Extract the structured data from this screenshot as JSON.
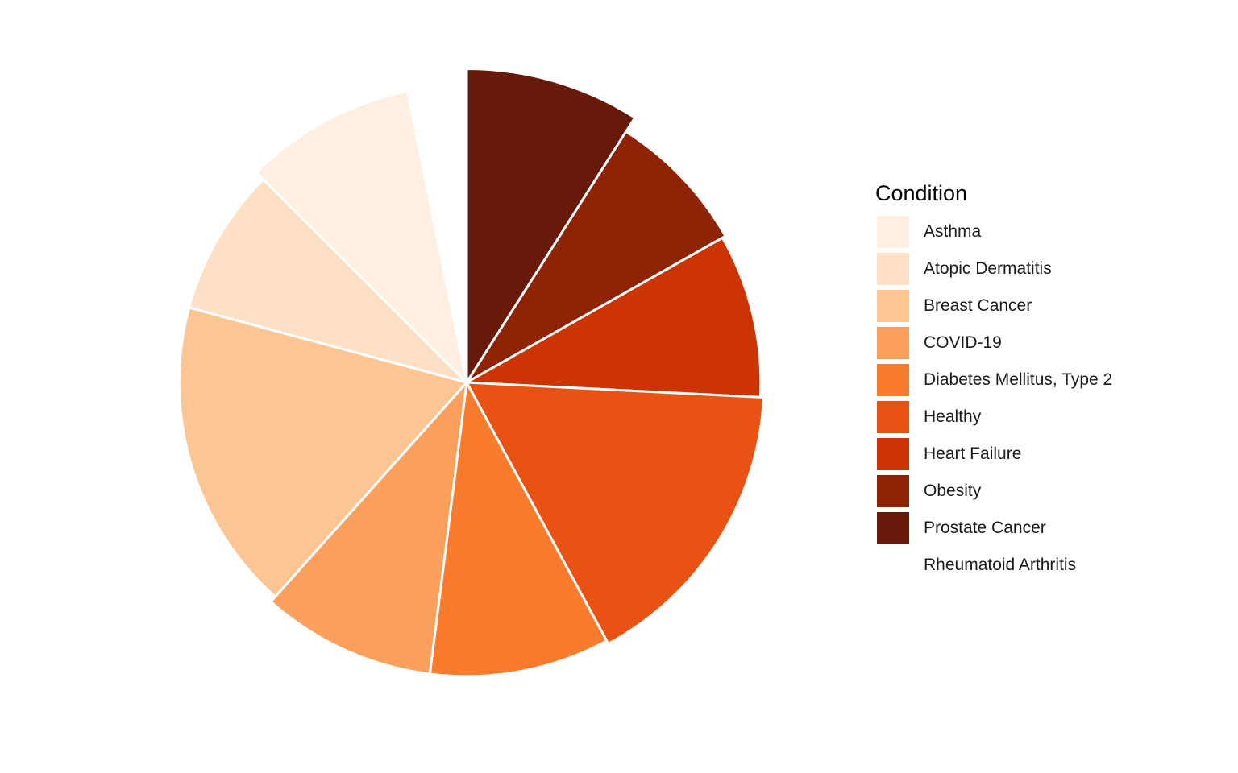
{
  "chart_data": {
    "type": "pie",
    "title": "",
    "legend_title": "Condition",
    "legend_position": "right",
    "start_angle_deg": 0,
    "direction": "clockwise",
    "variable_radius": true,
    "categories": [
      "Asthma",
      "Atopic Dermatitis",
      "Breast Cancer",
      "COVID-19",
      "Diabetes Mellitus, Type 2",
      "Healthy",
      "Heart Failure",
      "Obesity",
      "Prostate Cancer",
      "Rheumatoid Arthritis"
    ],
    "slices": [
      {
        "label": "Prostate Cancer",
        "angle_fraction": 0.09,
        "relative_radius": 0.95,
        "color": "#67190a"
      },
      {
        "label": "Obesity",
        "angle_fraction": 0.078,
        "relative_radius": 0.9,
        "color": "#8e2305"
      },
      {
        "label": "Heart Failure",
        "angle_fraction": 0.09,
        "relative_radius": 0.89,
        "color": "#cd3403"
      },
      {
        "label": "Healthy",
        "angle_fraction": 0.163,
        "relative_radius": 0.9,
        "color": "#e95213"
      },
      {
        "label": "Diabetes Mellitus, Type 2",
        "angle_fraction": 0.099,
        "relative_radius": 0.89,
        "color": "#f87b2e"
      },
      {
        "label": "COVID-19",
        "angle_fraction": 0.096,
        "relative_radius": 0.89,
        "color": "#fa9f5c"
      },
      {
        "label": "Breast Cancer",
        "angle_fraction": 0.176,
        "relative_radius": 0.87,
        "color": "#fcc594"
      },
      {
        "label": "Atopic Dermatitis",
        "angle_fraction": 0.083,
        "relative_radius": 0.87,
        "color": "#fde0c5"
      },
      {
        "label": "Asthma",
        "angle_fraction": 0.093,
        "relative_radius": 0.9,
        "color": "#feefe2"
      },
      {
        "label": "Rheumatoid Arthritis",
        "angle_fraction": 0.032,
        "relative_radius": 0.0,
        "color": "#ffffff"
      }
    ]
  },
  "legend": {
    "title": "Condition",
    "items": [
      {
        "label": "Asthma",
        "color": "#feefe2"
      },
      {
        "label": "Atopic Dermatitis",
        "color": "#fde0c5"
      },
      {
        "label": "Breast Cancer",
        "color": "#fcc594"
      },
      {
        "label": "COVID-19",
        "color": "#fa9f5c"
      },
      {
        "label": "Diabetes Mellitus, Type 2",
        "color": "#f87b2e"
      },
      {
        "label": "Healthy",
        "color": "#e95213"
      },
      {
        "label": "Heart Failure",
        "color": "#cd3403"
      },
      {
        "label": "Obesity",
        "color": "#8e2305"
      },
      {
        "label": "Prostate Cancer",
        "color": "#67190a"
      },
      {
        "label": "Rheumatoid Arthritis",
        "color": "#ffffff"
      }
    ]
  }
}
